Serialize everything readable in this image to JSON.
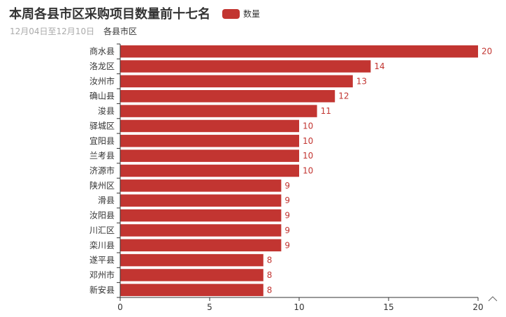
{
  "title": "本周各县市区采购项目数量前十七名",
  "subtitle": "12月04日至12月10日",
  "colors": {
    "bar": "#c23531",
    "axis": "#333333",
    "label": "#c23531"
  },
  "chart_data": {
    "type": "bar",
    "orientation": "horizontal",
    "ylabel": "各县市区",
    "categories": [
      "商水县",
      "洛龙区",
      "汝州市",
      "确山县",
      "浚县",
      "驿城区",
      "宜阳县",
      "兰考县",
      "济源市",
      "陕州区",
      "滑县",
      "汝阳县",
      "川汇区",
      "栾川县",
      "遂平县",
      "邓州市",
      "新安县"
    ],
    "series": [
      {
        "name": "数量",
        "values": [
          20,
          14,
          13,
          12,
          11,
          10,
          10,
          10,
          10,
          9,
          9,
          9,
          9,
          9,
          8,
          8,
          8
        ]
      }
    ],
    "xlim": [
      0,
      20
    ],
    "xticks": [
      "0",
      "5",
      "10",
      "15",
      "20"
    ],
    "grid": false,
    "legend_position": "top",
    "data_labels": true
  }
}
